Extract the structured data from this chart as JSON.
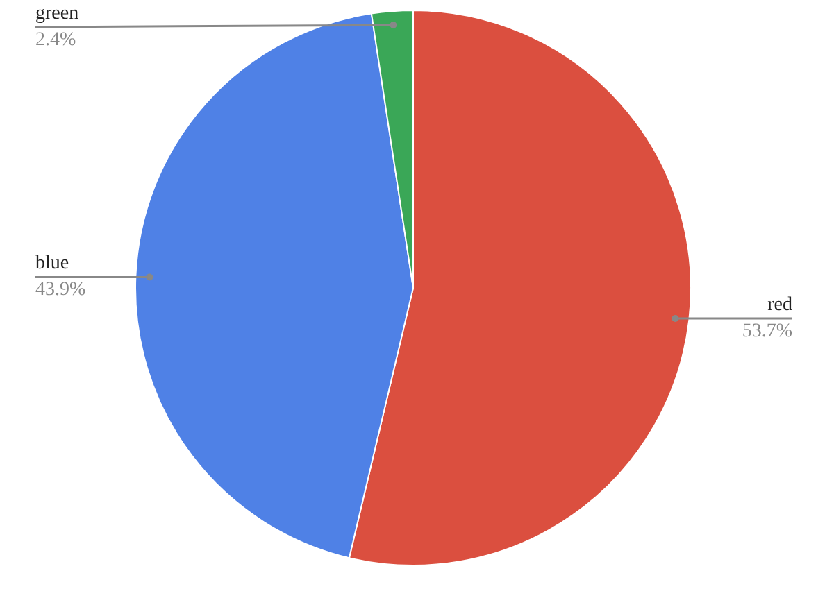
{
  "chart_data": {
    "type": "pie",
    "categories": [
      "red",
      "blue",
      "green"
    ],
    "values": [
      53.7,
      43.9,
      2.4
    ],
    "colors": [
      "#db4f3f",
      "#4f81e6",
      "#3aa757"
    ],
    "value_labels": [
      "53.7%",
      "43.9%",
      "2.4%"
    ]
  }
}
